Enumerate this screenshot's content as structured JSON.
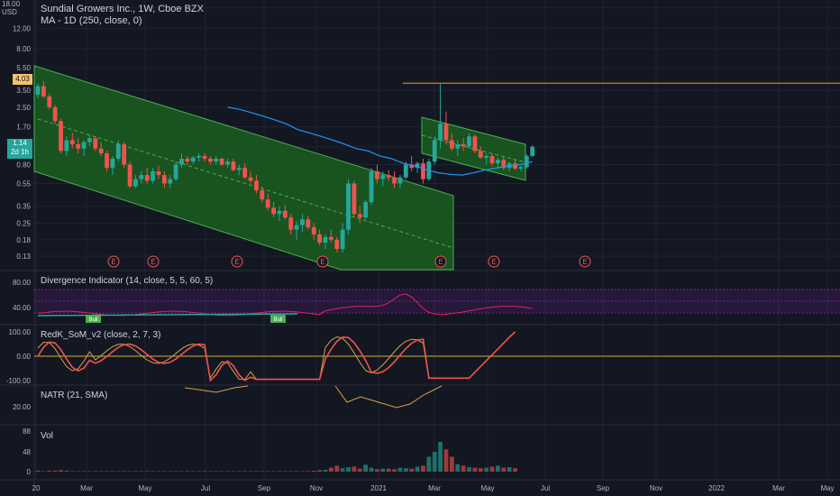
{
  "header": {
    "symbol_line": "Sundial Growers Inc., 1W, Cboe BZX",
    "ma_line": "MA - 1D (250, close, 0)",
    "currency": "USD"
  },
  "price_badges": {
    "current": "1.14",
    "countdown": "2d 1h",
    "orange": "4.03"
  },
  "indicators": {
    "divergence": "Divergence Indicator (14, close, 5, 5, 60, 5)",
    "som": "RedK_SoM_v2 (close, 2, 7, 3)",
    "natr": "NATR (21, SMA)",
    "vol": "Vol",
    "bull_label": "Bull"
  },
  "earnings_marker": "E",
  "colors": {
    "background": "#131722",
    "up": "#26a69a",
    "down": "#ef5350",
    "channel_fill": "#1b5e20",
    "ma_line": "#2196f3",
    "orange": "#ff9800",
    "purple": "#e91e63"
  },
  "chart_data": [
    {
      "type": "candlestick",
      "title": "Sundial Growers Inc., 1W, Cboe BZX",
      "y_scale": "log",
      "y_ticks": [
        "18.00",
        "12.00",
        "8.00",
        "5.50",
        "3.50",
        "2.50",
        "1.70",
        "1.14",
        "0.80",
        "0.55",
        "0.35",
        "0.25",
        "0.18",
        "0.13"
      ],
      "x_ticks": [
        "20",
        "Mar",
        "May",
        "Jul",
        "Sep",
        "Nov",
        "2021",
        "Mar",
        "May",
        "Jul",
        "Sep",
        "Nov",
        "2022",
        "Mar",
        "May"
      ],
      "candles": [
        [
          3.2,
          4.0,
          3.0,
          3.8
        ],
        [
          3.8,
          4.2,
          3.0,
          3.1
        ],
        [
          3.1,
          3.3,
          2.4,
          2.5
        ],
        [
          2.5,
          2.6,
          1.8,
          1.9
        ],
        [
          1.9,
          2.0,
          1.0,
          1.05
        ],
        [
          1.05,
          1.4,
          0.95,
          1.3
        ],
        [
          1.3,
          1.5,
          1.1,
          1.2
        ],
        [
          1.2,
          1.35,
          1.0,
          1.1
        ],
        [
          1.1,
          1.3,
          0.95,
          1.25
        ],
        [
          1.25,
          1.45,
          1.15,
          1.35
        ],
        [
          1.35,
          1.4,
          1.05,
          1.1
        ],
        [
          1.1,
          1.25,
          0.95,
          1.0
        ],
        [
          1.0,
          1.05,
          0.7,
          0.75
        ],
        [
          0.75,
          0.95,
          0.65,
          0.9
        ],
        [
          0.9,
          1.3,
          0.85,
          1.2
        ],
        [
          1.2,
          1.25,
          0.75,
          0.8
        ],
        [
          0.8,
          0.85,
          0.5,
          0.52
        ],
        [
          0.52,
          0.65,
          0.5,
          0.6
        ],
        [
          0.6,
          0.7,
          0.55,
          0.65
        ],
        [
          0.65,
          0.75,
          0.55,
          0.58
        ],
        [
          0.58,
          0.75,
          0.55,
          0.7
        ],
        [
          0.7,
          0.78,
          0.6,
          0.65
        ],
        [
          0.65,
          0.7,
          0.5,
          0.55
        ],
        [
          0.55,
          0.65,
          0.5,
          0.6
        ],
        [
          0.6,
          0.85,
          0.58,
          0.8
        ],
        [
          0.8,
          1.0,
          0.75,
          0.9
        ],
        [
          0.9,
          0.95,
          0.8,
          0.85
        ],
        [
          0.85,
          0.95,
          0.8,
          0.92
        ],
        [
          0.92,
          1.0,
          0.85,
          0.95
        ],
        [
          0.95,
          1.0,
          0.85,
          0.9
        ],
        [
          0.9,
          0.95,
          0.8,
          0.85
        ],
        [
          0.85,
          0.95,
          0.8,
          0.9
        ],
        [
          0.9,
          0.92,
          0.78,
          0.8
        ],
        [
          0.8,
          0.9,
          0.75,
          0.85
        ],
        [
          0.85,
          0.9,
          0.7,
          0.72
        ],
        [
          0.72,
          0.8,
          0.65,
          0.75
        ],
        [
          0.75,
          0.82,
          0.6,
          0.62
        ],
        [
          0.62,
          0.7,
          0.55,
          0.58
        ],
        [
          0.58,
          0.65,
          0.45,
          0.48
        ],
        [
          0.48,
          0.52,
          0.38,
          0.4
        ],
        [
          0.4,
          0.45,
          0.32,
          0.34
        ],
        [
          0.34,
          0.38,
          0.28,
          0.3
        ],
        [
          0.3,
          0.35,
          0.26,
          0.32
        ],
        [
          0.32,
          0.36,
          0.27,
          0.28
        ],
        [
          0.28,
          0.3,
          0.2,
          0.22
        ],
        [
          0.22,
          0.26,
          0.18,
          0.24
        ],
        [
          0.24,
          0.3,
          0.21,
          0.27
        ],
        [
          0.27,
          0.29,
          0.22,
          0.23
        ],
        [
          0.23,
          0.25,
          0.18,
          0.2
        ],
        [
          0.2,
          0.22,
          0.16,
          0.17
        ],
        [
          0.17,
          0.2,
          0.15,
          0.19
        ],
        [
          0.19,
          0.22,
          0.17,
          0.18
        ],
        [
          0.18,
          0.19,
          0.14,
          0.15
        ],
        [
          0.15,
          0.25,
          0.14,
          0.22
        ],
        [
          0.22,
          0.6,
          0.2,
          0.55
        ],
        [
          0.55,
          0.58,
          0.28,
          0.3
        ],
        [
          0.3,
          0.35,
          0.25,
          0.28
        ],
        [
          0.28,
          0.4,
          0.27,
          0.38
        ],
        [
          0.38,
          0.75,
          0.36,
          0.7
        ],
        [
          0.7,
          0.8,
          0.55,
          0.6
        ],
        [
          0.6,
          0.7,
          0.52,
          0.65
        ],
        [
          0.65,
          0.72,
          0.58,
          0.62
        ],
        [
          0.62,
          0.7,
          0.5,
          0.55
        ],
        [
          0.55,
          0.65,
          0.5,
          0.62
        ],
        [
          0.62,
          0.85,
          0.6,
          0.8
        ],
        [
          0.8,
          0.95,
          0.7,
          0.75
        ],
        [
          0.75,
          0.85,
          0.68,
          0.82
        ],
        [
          0.82,
          0.9,
          0.55,
          0.6
        ],
        [
          0.6,
          0.9,
          0.58,
          0.85
        ],
        [
          0.85,
          1.4,
          0.8,
          1.3
        ],
        [
          1.3,
          4.03,
          1.1,
          1.8
        ],
        [
          1.8,
          2.3,
          1.2,
          1.3
        ],
        [
          1.3,
          1.5,
          1.05,
          1.1
        ],
        [
          1.1,
          1.3,
          0.95,
          1.2
        ],
        [
          1.2,
          1.35,
          1.05,
          1.15
        ],
        [
          1.15,
          1.5,
          1.1,
          1.4
        ],
        [
          1.4,
          1.45,
          1.0,
          1.05
        ],
        [
          1.05,
          1.15,
          0.9,
          0.92
        ],
        [
          0.92,
          1.0,
          0.8,
          0.95
        ],
        [
          0.95,
          1.0,
          0.78,
          0.82
        ],
        [
          0.82,
          0.92,
          0.76,
          0.88
        ],
        [
          0.88,
          0.95,
          0.72,
          0.75
        ],
        [
          0.75,
          0.85,
          0.7,
          0.82
        ],
        [
          0.82,
          0.88,
          0.72,
          0.74
        ],
        [
          0.74,
          0.78,
          0.7,
          0.76
        ],
        [
          0.76,
          0.98,
          0.74,
          0.95
        ],
        [
          0.95,
          1.18,
          0.92,
          1.14
        ]
      ],
      "ma_250": [
        2.5,
        2.4,
        2.25,
        2.1,
        1.95,
        1.8,
        1.6,
        1.5,
        1.4,
        1.3,
        1.2,
        1.1,
        1.05,
        0.95,
        0.9,
        0.82,
        0.78,
        0.72,
        0.68,
        0.66,
        0.65,
        0.68,
        0.72,
        0.75,
        0.78,
        0.8,
        0.85
      ],
      "horizontal_line": 4.03
    },
    {
      "type": "line",
      "title": "Divergence Indicator (14, close, 5, 5, 60, 5)",
      "y_ticks": [
        "80.00",
        "40.00"
      ]
    },
    {
      "type": "line",
      "title": "RedK_SoM_v2 (close, 2, 7, 3)",
      "y_ticks": [
        "100.00",
        "0.00",
        "-100.00"
      ]
    },
    {
      "type": "line",
      "title": "NATR (21, SMA)",
      "y_ticks": [
        "20.00"
      ]
    },
    {
      "type": "bar",
      "title": "Vol",
      "y_ticks": [
        "88",
        "48",
        "0"
      ]
    }
  ]
}
